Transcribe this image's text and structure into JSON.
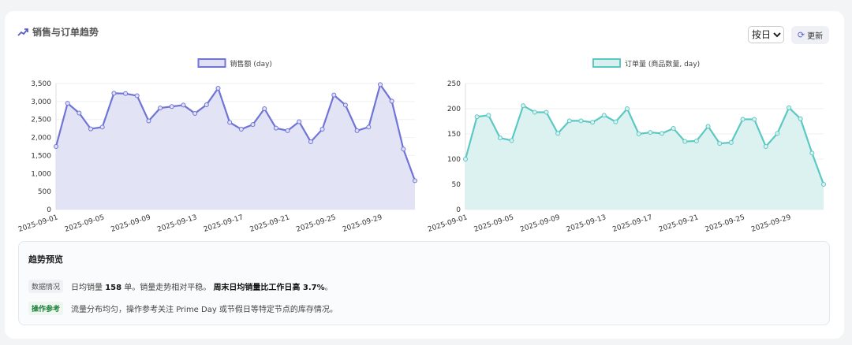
{
  "header": {
    "title": "销售与订单趋势",
    "icon": "trending-up-icon",
    "period_select": "按日",
    "refresh_label": "更新"
  },
  "chart_data": [
    {
      "type": "area",
      "legend": "销售额 (day)",
      "legend_position": "top",
      "color": "#6f74d6",
      "fill": "#dfe0f4",
      "x": [
        "2025-09-01",
        "2025-09-02",
        "2025-09-03",
        "2025-09-04",
        "2025-09-05",
        "2025-09-06",
        "2025-09-07",
        "2025-09-08",
        "2025-09-09",
        "2025-09-10",
        "2025-09-11",
        "2025-09-12",
        "2025-09-13",
        "2025-09-14",
        "2025-09-15",
        "2025-09-16",
        "2025-09-17",
        "2025-09-18",
        "2025-09-19",
        "2025-09-20",
        "2025-09-21",
        "2025-09-22",
        "2025-09-23",
        "2025-09-24",
        "2025-09-25",
        "2025-09-26",
        "2025-09-27",
        "2025-09-28",
        "2025-09-29",
        "2025-09-30",
        "2025-10-01",
        "2025-10-02"
      ],
      "x_tick_labels": [
        "2025-09-01",
        "2025-09-05",
        "2025-09-09",
        "2025-09-13",
        "2025-09-17",
        "2025-09-21",
        "2025-09-25",
        "2025-09-29"
      ],
      "values": [
        1750,
        2950,
        2680,
        2240,
        2290,
        3230,
        3220,
        3160,
        2460,
        2820,
        2860,
        2900,
        2670,
        2910,
        3370,
        2420,
        2230,
        2360,
        2800,
        2260,
        2190,
        2440,
        1880,
        2230,
        3180,
        2900,
        2190,
        2290,
        3470,
        3010,
        1680,
        800
      ],
      "ylim": [
        0,
        3500
      ],
      "y_ticks": [
        "0",
        "500",
        "1,000",
        "1,500",
        "2,000",
        "2,500",
        "3,000",
        "3,500"
      ],
      "grid": true
    },
    {
      "type": "area",
      "legend": "订单量 (商品数量, day)",
      "legend_position": "top",
      "color": "#5cc8c4",
      "fill": "#d8f1ef",
      "x": [
        "2025-09-01",
        "2025-09-02",
        "2025-09-03",
        "2025-09-04",
        "2025-09-05",
        "2025-09-06",
        "2025-09-07",
        "2025-09-08",
        "2025-09-09",
        "2025-09-10",
        "2025-09-11",
        "2025-09-12",
        "2025-09-13",
        "2025-09-14",
        "2025-09-15",
        "2025-09-16",
        "2025-09-17",
        "2025-09-18",
        "2025-09-19",
        "2025-09-20",
        "2025-09-21",
        "2025-09-22",
        "2025-09-23",
        "2025-09-24",
        "2025-09-25",
        "2025-09-26",
        "2025-09-27",
        "2025-09-28",
        "2025-09-29",
        "2025-09-30",
        "2025-10-01",
        "2025-10-02"
      ],
      "x_tick_labels": [
        "2025-09-01",
        "2025-09-05",
        "2025-09-09",
        "2025-09-13",
        "2025-09-17",
        "2025-09-21",
        "2025-09-25",
        "2025-09-29"
      ],
      "values": [
        100,
        184,
        187,
        142,
        137,
        206,
        193,
        193,
        151,
        176,
        176,
        173,
        187,
        174,
        200,
        150,
        153,
        151,
        161,
        135,
        136,
        165,
        131,
        133,
        179,
        179,
        125,
        151,
        202,
        180,
        112,
        50
      ],
      "ylim": [
        0,
        250
      ],
      "y_ticks": [
        "0",
        "50",
        "100",
        "150",
        "200",
        "250"
      ],
      "grid": true
    }
  ],
  "preview": {
    "title": "趋势预览",
    "data_tag": "数据情况",
    "data_text_1": "日均销量 ",
    "data_num": "158",
    "data_text_2": " 单。销量走势相对平稳。 ",
    "data_bold": "周末日均销量比工作日高 3.7%",
    "data_end": "。",
    "ops_tag": "操作参考",
    "ops_text": "流量分布均匀，操作参考关注 Prime Day 或节假日等特定节点的库存情况。"
  }
}
